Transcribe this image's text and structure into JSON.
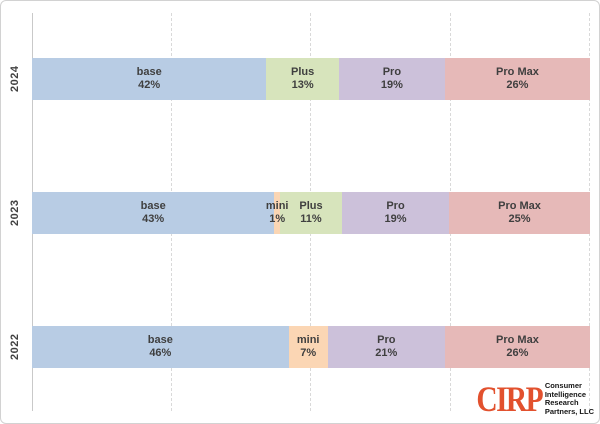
{
  "chart_data": {
    "type": "bar",
    "variant": "horizontal-stacked-percentage",
    "title": "",
    "xlabel": "",
    "ylabel": "",
    "legend": "none",
    "grid": "vertical-dashed",
    "xlim_pct": [
      0,
      100
    ],
    "gridlines_pct": [
      25,
      50,
      75,
      100
    ],
    "categories": [
      "2024",
      "2023",
      "2022"
    ],
    "segment_order": [
      "base",
      "mini",
      "Plus",
      "Pro",
      "Pro Max"
    ],
    "colors": {
      "base": "#B8CCE4",
      "mini": "#FBD6B4",
      "Plus": "#D7E4BC",
      "Pro": "#CCC1DA",
      "Pro Max": "#E6B9B8"
    },
    "label_color": "#3F3F3F",
    "rows": [
      {
        "year": "2024",
        "values": [
          {
            "label": "base",
            "pct": 42
          },
          {
            "label": "Plus",
            "pct": 13
          },
          {
            "label": "Pro",
            "pct": 19
          },
          {
            "label": "Pro Max",
            "pct": 26
          }
        ]
      },
      {
        "year": "2023",
        "values": [
          {
            "label": "base",
            "pct": 43
          },
          {
            "label": "mini",
            "pct": 1
          },
          {
            "label": "Plus",
            "pct": 11
          },
          {
            "label": "Pro",
            "pct": 19
          },
          {
            "label": "Pro Max",
            "pct": 25
          }
        ]
      },
      {
        "year": "2022",
        "values": [
          {
            "label": "base",
            "pct": 46
          },
          {
            "label": "mini",
            "pct": 7
          },
          {
            "label": "Pro",
            "pct": 21
          },
          {
            "label": "Pro Max",
            "pct": 26
          }
        ]
      }
    ]
  },
  "logo": {
    "brand": "CIRP",
    "brand_color": "#E2512E",
    "lines": [
      "Consumer",
      "Intelligence",
      "Research",
      "Partners, LLC"
    ]
  }
}
